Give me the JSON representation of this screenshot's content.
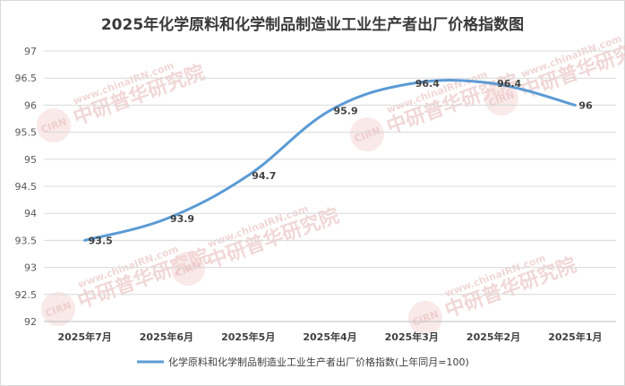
{
  "chart_data": {
    "type": "line",
    "title": "2025年化学原料和化学制品制造业工业生产者出厂价格指数图",
    "categories": [
      "2025年7月",
      "2025年6月",
      "2025年5月",
      "2025年4月",
      "2025年3月",
      "2025年2月",
      "2025年1月"
    ],
    "series": [
      {
        "name": "化学原料和化学制品制造业工业生产者出厂价格指数(上年同月=100)",
        "values": [
          93.5,
          93.9,
          94.7,
          95.9,
          96.4,
          96.4,
          96
        ]
      }
    ],
    "data_labels": [
      "93.5",
      "93.9",
      "94.7",
      "95.9",
      "96.4",
      "96.4",
      "96"
    ],
    "ylim": [
      92,
      97
    ],
    "y_ticks": [
      "92",
      "92.5",
      "93",
      "93.5",
      "94",
      "94.5",
      "95",
      "95.5",
      "96",
      "96.5",
      "97"
    ],
    "grid": true,
    "legend_position": "bottom",
    "line_color": "#5b9bd5"
  },
  "watermark": {
    "url_text": "www.chinaIRN.com",
    "brand_text": "中研普华研究院",
    "logo_text": "CIRN"
  }
}
